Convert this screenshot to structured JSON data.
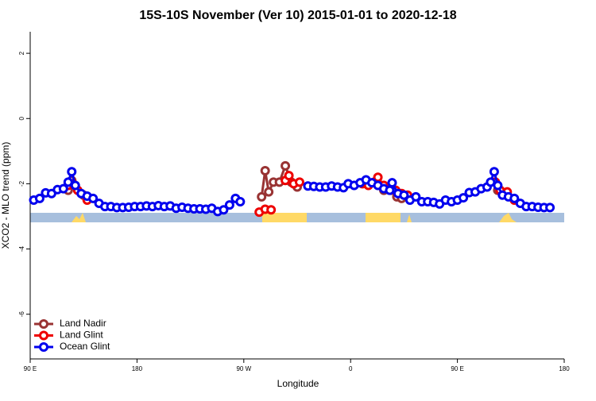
{
  "chart_data": {
    "type": "line",
    "title": "15S-10S November (Ver 10)   2015-01-01 to 2020-12-18",
    "x_label": "Longitude",
    "y_label": "XCO2 - MLO trend (ppm)",
    "xlim": [
      90,
      540
    ],
    "ylim": [
      -7.37,
      2.66
    ],
    "xticks": [
      {
        "value": 90,
        "label": "90 E"
      },
      {
        "value": 180,
        "label": "180"
      },
      {
        "value": 270,
        "label": "90 W"
      },
      {
        "value": 360,
        "label": "0"
      },
      {
        "value": 450,
        "label": "90 E"
      },
      {
        "value": 540,
        "label": "180"
      }
    ],
    "yticks": [
      -6,
      -4,
      -2,
      0,
      2
    ],
    "legend": "bottom-left",
    "series": [
      {
        "name": "Land Nadir",
        "color": "#993333",
        "x": [
          122,
          125,
          135,
          null,
          285,
          288,
          291,
          295,
          300,
          305,
          310,
          315,
          null,
          375,
          382,
          388,
          394,
          399,
          403,
          null,
          484
        ],
        "values": [
          -2.2,
          -1.9,
          -2.35,
          null,
          -2.4,
          -1.6,
          -2.25,
          -1.95,
          -1.95,
          -1.45,
          -1.95,
          -2.1,
          null,
          -1.97,
          -1.9,
          -2.2,
          -2.2,
          -2.4,
          -2.45,
          null,
          -2.2
        ]
      },
      {
        "name": "Land Glint",
        "color": "#ee0000",
        "x": [
          122,
          126,
          130,
          138,
          null,
          283,
          288,
          293,
          null,
          305,
          308,
          312,
          317,
          null,
          370,
          375,
          380,
          383,
          388,
          393,
          398,
          403,
          408,
          null,
          482,
          486,
          492,
          498
        ],
        "values": [
          -2.05,
          -2.0,
          -2.2,
          -2.5,
          null,
          -2.87,
          -2.78,
          -2.8,
          null,
          -1.9,
          -1.75,
          -2.0,
          -1.95,
          null,
          -2.0,
          -2.05,
          -1.95,
          -1.8,
          -2.05,
          -2.15,
          -2.2,
          -2.3,
          -2.35,
          null,
          -1.95,
          -2.2,
          -2.25,
          -2.5
        ]
      },
      {
        "name": "Ocean Glint",
        "color": "#0000ee",
        "x": [
          93,
          98,
          103,
          108,
          113,
          118,
          122,
          125,
          128,
          133,
          138,
          143,
          148,
          153,
          158,
          163,
          168,
          173,
          178,
          183,
          188,
          193,
          198,
          203,
          208,
          213,
          218,
          223,
          228,
          233,
          238,
          243,
          248,
          253,
          258,
          263,
          267,
          null,
          324,
          329,
          334,
          339,
          344,
          349,
          354,
          358,
          363,
          368,
          373,
          378,
          383,
          388,
          393,
          395,
          400,
          405,
          410,
          415,
          420,
          425,
          430,
          435,
          440,
          445,
          450,
          455,
          460,
          465,
          470,
          475,
          478,
          481,
          484,
          488,
          493,
          498,
          503,
          508,
          513,
          518,
          523,
          528
        ],
        "values": [
          -2.5,
          -2.45,
          -2.28,
          -2.3,
          -2.18,
          -2.15,
          -1.95,
          -1.63,
          -2.05,
          -2.3,
          -2.38,
          -2.45,
          -2.6,
          -2.7,
          -2.7,
          -2.73,
          -2.73,
          -2.72,
          -2.7,
          -2.7,
          -2.68,
          -2.7,
          -2.67,
          -2.7,
          -2.68,
          -2.75,
          -2.72,
          -2.75,
          -2.77,
          -2.77,
          -2.78,
          -2.75,
          -2.85,
          -2.8,
          -2.65,
          -2.45,
          -2.55,
          null,
          -2.07,
          -2.08,
          -2.1,
          -2.1,
          -2.07,
          -2.1,
          -2.12,
          -2.0,
          -2.05,
          -1.97,
          -1.88,
          -1.97,
          -2.05,
          -2.15,
          -2.2,
          -1.97,
          -2.3,
          -2.35,
          -2.5,
          -2.4,
          -2.55,
          -2.55,
          -2.57,
          -2.62,
          -2.5,
          -2.55,
          -2.5,
          -2.43,
          -2.27,
          -2.25,
          -2.15,
          -2.1,
          -1.95,
          -1.63,
          -2.05,
          -2.35,
          -2.4,
          -2.45,
          -2.6,
          -2.7,
          -2.7,
          -2.72,
          -2.73,
          -2.73
        ]
      }
    ]
  }
}
